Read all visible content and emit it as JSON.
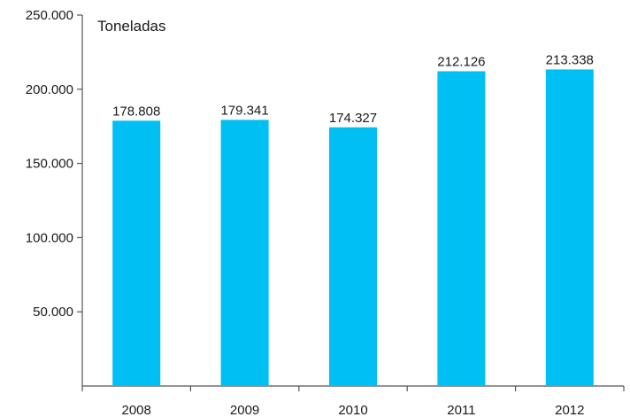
{
  "chart_data": {
    "type": "bar",
    "title": "",
    "unit_label": "Toneladas",
    "xlabel": "",
    "ylabel": "",
    "categories": [
      "2008",
      "2009",
      "2010",
      "2011",
      "2012"
    ],
    "values": [
      178808,
      179341,
      174327,
      212126,
      213338
    ],
    "value_labels": [
      "178.808",
      "179.341",
      "174.327",
      "212.126",
      "213.338"
    ],
    "ylim": [
      0,
      250000
    ],
    "yticks": [
      50000,
      100000,
      150000,
      200000,
      250000
    ],
    "ytick_labels": [
      "50.000",
      "100.000",
      "150.000",
      "200.000",
      "250.000"
    ],
    "grid": false,
    "legend": "none",
    "bar_color": "#00BFF3"
  }
}
